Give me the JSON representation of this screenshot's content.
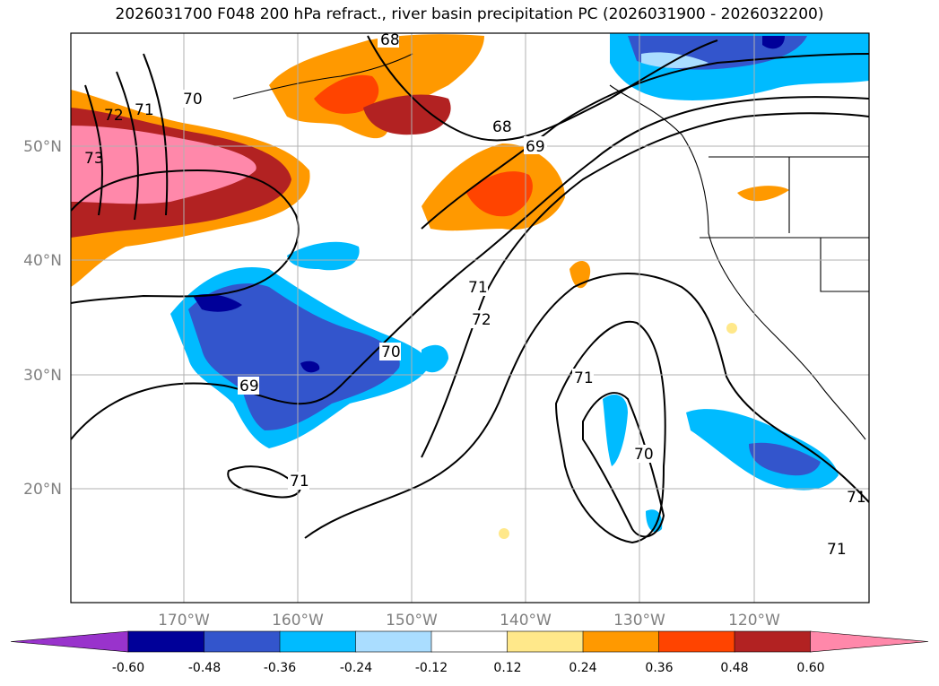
{
  "title": "2026031700 F048 200 hPa refract., river basin precipitation PC (2026031900 - 2026032200)",
  "lat_labels": [
    "50°N",
    "40°N",
    "30°N",
    "20°N"
  ],
  "lon_labels": [
    "170°W",
    "160°W",
    "150°W",
    "140°W",
    "130°W",
    "120°W"
  ],
  "contour_labels": [
    "68",
    "69",
    "70",
    "71",
    "72",
    "73"
  ],
  "colorbar": {
    "ticks": [
      "-0.60",
      "-0.48",
      "-0.36",
      "-0.24",
      "-0.12",
      "0.12",
      "0.24",
      "0.36",
      "0.48",
      "0.60"
    ],
    "colors": [
      "#9933cc",
      "#000099",
      "#3355cc",
      "#00bbff",
      "#aaddff",
      "#ffffff",
      "#ffe88a",
      "#ff9900",
      "#ff4400",
      "#b22222",
      "#ff88aa"
    ]
  }
}
